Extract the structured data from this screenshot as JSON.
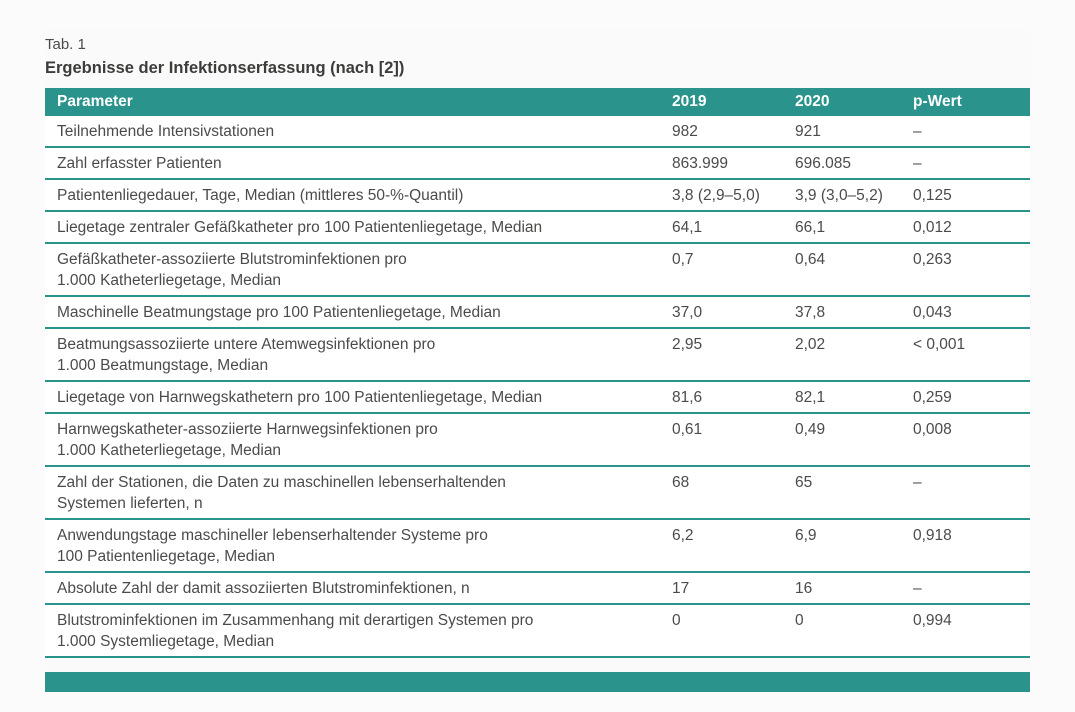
{
  "page": {
    "tag_label": "Tab. 1",
    "title": "Ergebnisse der Infektionserfassung (nach [2])"
  },
  "table": {
    "headers": {
      "parameter": "Parameter",
      "y2019": "2019",
      "y2020": "2020",
      "p": "p-Wert"
    },
    "rows": [
      {
        "parameter": "Teilnehmende Intensivstationen",
        "y2019": "982",
        "y2020": "921",
        "p": "–"
      },
      {
        "parameter": "Zahl erfasster Patienten",
        "y2019": "863.999",
        "y2020": "696.085",
        "p": "–"
      },
      {
        "parameter": "Patientenliegedauer, Tage, Median (mittleres 50-%-Quantil)",
        "y2019": "3,8 (2,9–5,0)",
        "y2020": "3,9 (3,0–5,2)",
        "p": "0,125"
      },
      {
        "parameter": "Liegetage zentraler Gefäßkatheter pro 100 Patientenliegetage, Median",
        "y2019": "64,1",
        "y2020": "66,1",
        "p": "0,012"
      },
      {
        "parameter": "Gefäßkatheter-assoziierte Blutstrominfektionen pro\n1.000 Katheterliegetage, Median",
        "y2019": "0,7",
        "y2020": "0,64",
        "p": "0,263"
      },
      {
        "parameter": "Maschinelle Beatmungstage pro 100 Patientenliegetage, Median",
        "y2019": "37,0",
        "y2020": "37,8",
        "p": "0,043"
      },
      {
        "parameter": "Beatmungsassoziierte untere Atemwegsinfektionen pro\n1.000 Beatmungstage, Median",
        "y2019": "2,95",
        "y2020": "2,02",
        "p": "< 0,001"
      },
      {
        "parameter": "Liegetage von Harnwegskathetern pro 100 Patientenliegetage, Median",
        "y2019": "81,6",
        "y2020": "82,1",
        "p": "0,259"
      },
      {
        "parameter": "Harnwegskatheter-assoziierte Harnwegsinfektionen pro\n1.000 Katheterliegetage, Median",
        "y2019": "0,61",
        "y2020": "0,49",
        "p": "0,008"
      },
      {
        "parameter": "Zahl der Stationen, die Daten zu maschinellen lebenserhaltenden\nSystemen lieferten, n",
        "y2019": "68",
        "y2020": "65",
        "p": "–"
      },
      {
        "parameter": "Anwendungstage maschineller lebenserhaltender Systeme pro\n100 Patientenliegetage, Median",
        "y2019": "6,2",
        "y2020": "6,9",
        "p": "0,918"
      },
      {
        "parameter": "Absolute Zahl der damit assoziierten Blutstrominfektionen, n",
        "y2019": "17",
        "y2020": "16",
        "p": "–"
      },
      {
        "parameter": "Blutstrominfektionen im Zusammenhang mit derartigen Systemen pro\n1.000 Systemliegetage, Median",
        "y2019": "0",
        "y2020": "0",
        "p": "0,994"
      }
    ]
  },
  "colors": {
    "accent_teal": "#2a938c",
    "header_text": "#ffffff",
    "body_text": "#4b4b49",
    "row_background": "#ffffff",
    "page_background": "#fafafa"
  }
}
